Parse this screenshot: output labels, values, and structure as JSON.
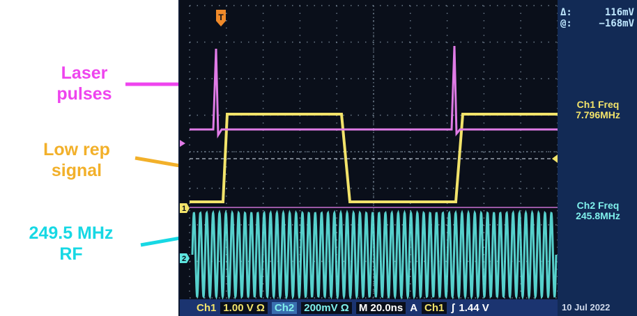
{
  "annotations": {
    "laser": {
      "line1": "Laser",
      "line2": "pulses",
      "color": "#ee44ee"
    },
    "lowrep": {
      "line1": "Low rep",
      "line2": "signal",
      "color": "#f2b02a"
    },
    "rf": {
      "line1": "249.5 MHz",
      "line2": "RF",
      "color": "#17d8e4"
    }
  },
  "scope": {
    "trigger_marker": "T",
    "ch1_marker": "1",
    "ch2_marker": "2",
    "delta_label": "Δ:",
    "delta_value": "116mV",
    "at_label": "@:",
    "at_value": "−168mV",
    "ch1_freq_label": "Ch1 Freq",
    "ch1_freq_value": "7.796MHz",
    "ch2_freq_label": "Ch2 Freq",
    "ch2_freq_value": "245.8MHz",
    "colors": {
      "ch1": "#f2e36a",
      "ch2": "#5ee6e0",
      "ch3": "#e07be6"
    }
  },
  "statusbar": {
    "ch1": "Ch1",
    "ch1_scale": "1.00 V Ω",
    "ch2": "Ch2",
    "ch2_scale": "200mV Ω",
    "time": "M 20.0ns",
    "trig_mode": "A",
    "trig_src": "Ch1",
    "trig_slope": "ʃ",
    "trig_level": "1.44 V",
    "date": "10 Jul 2022"
  }
}
